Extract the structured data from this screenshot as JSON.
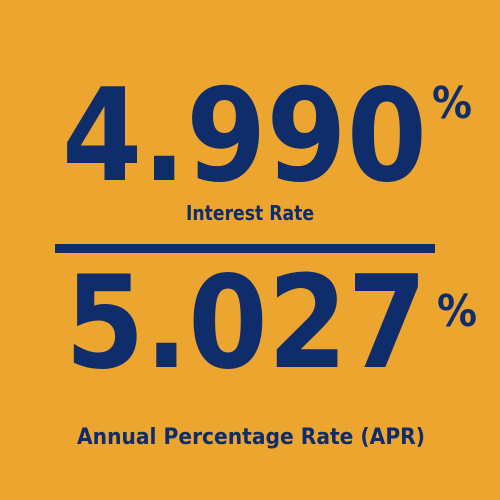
{
  "interest": {
    "rate": "4.990",
    "symbol": "%",
    "label": "Interest Rate"
  },
  "apr": {
    "rate": "5.027",
    "symbol": "%",
    "label": "Annual Percentage Rate (APR)"
  }
}
